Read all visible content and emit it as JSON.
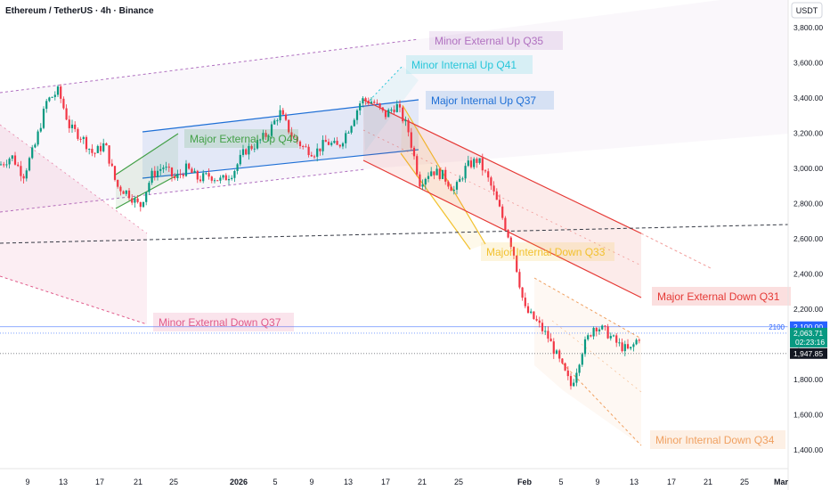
{
  "header": {
    "symbol_title": "Ethereum / TetherUS · 4h · Binance",
    "currency_label": "USDT"
  },
  "colors": {
    "up_candle": "#089981",
    "down_candle": "#f23645",
    "minor_external_up": "#b070c0",
    "minor_internal_up": "#26c6da",
    "major_internal_up": "#1e6fd6",
    "major_external_up": "#43a047",
    "major_internal_down": "#f2c12e",
    "major_external_down": "#e53935",
    "minor_external_down": "#e05a8a",
    "minor_internal_down": "#f0a060"
  },
  "chart_data": {
    "type": "candlestick",
    "symbol": "ETHUSDT",
    "timeframe": "4h",
    "exchange": "Binance",
    "y_axis": {
      "range": [
        1320,
        3900
      ],
      "ticks": [
        3800,
        3600,
        3400,
        3200,
        3000,
        2800,
        2600,
        2400,
        2200,
        2000,
        1800,
        1600,
        1400
      ],
      "tick_labels": [
        "3,800.00",
        "3,600.00",
        "3,400.00",
        "3,200.00",
        "3,000.00",
        "2,800.00",
        "2,600.00",
        "2,400.00",
        "2,200.00",
        "2,000.00",
        "1,800.00",
        "1,600.00",
        "1,400.00"
      ]
    },
    "x_axis": {
      "tick_labels": [
        "9",
        "13",
        "17",
        "21",
        "25",
        "2026",
        "5",
        "9",
        "13",
        "17",
        "21",
        "25",
        "Feb",
        "5",
        "9",
        "13",
        "17",
        "21",
        "25",
        "Mar"
      ]
    },
    "price_markers": {
      "level_2100": {
        "label": "2100",
        "value_label": "2,100.00",
        "value": 2100
      },
      "last_price": {
        "value_label": "2,063.71",
        "countdown": "02:23:16",
        "value": 2063.71
      },
      "low_marker": {
        "value_label": "1,947.85",
        "value": 1947.85
      }
    },
    "annotations": [
      {
        "label": "Minor External Up  Q35",
        "color": "#b070c0"
      },
      {
        "label": "Minor Internal Up  Q41",
        "color": "#26c6da"
      },
      {
        "label": "Major Internal Up  Q37",
        "color": "#1e6fd6"
      },
      {
        "label": "Major External Up  Q49",
        "color": "#43a047"
      },
      {
        "label": "Major Internal Down  Q33",
        "color": "#f2c12e"
      },
      {
        "label": "Major External Down  Q31",
        "color": "#e53935"
      },
      {
        "label": "Minor External Down  Q37",
        "color": "#e05a8a"
      },
      {
        "label": "Minor Internal Down  Q34",
        "color": "#f0a060"
      }
    ],
    "price_path": [
      3020,
      3070,
      2960,
      3130,
      3380,
      3440,
      3230,
      3180,
      3080,
      3140,
      2900,
      2860,
      2780,
      2960,
      3010,
      2940,
      3000,
      2940,
      2960,
      2930,
      2980,
      3100,
      3140,
      3200,
      3320,
      3190,
      3120,
      3090,
      3150,
      3120,
      3240,
      3390,
      3380,
      3300,
      3360,
      3220,
      2920,
      2990,
      2960,
      2870,
      3010,
      3050,
      2920,
      2740,
      2540,
      2200,
      2130,
      2040,
      1900,
      1760,
      1980,
      2110,
      2070,
      2000,
      1960,
      2064
    ]
  }
}
